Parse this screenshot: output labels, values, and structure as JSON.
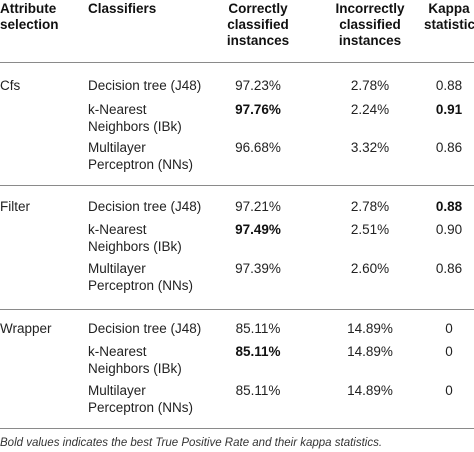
{
  "table": {
    "headers": {
      "attribute_selection": [
        "Attribute",
        "selection"
      ],
      "classifiers": [
        "Classifiers"
      ],
      "correct": [
        "Correctly",
        "classified",
        "instances"
      ],
      "incorrect": [
        "Incorrectly",
        "classified",
        "instances"
      ],
      "kappa": [
        "Kappa",
        "statistic"
      ]
    },
    "groups": [
      {
        "name": "Cfs",
        "rows": [
          {
            "classifier": [
              "Decision tree (J48)"
            ],
            "correct": "97.23%",
            "correct_bold": false,
            "incorrect": "2.78%",
            "kappa": "0.88",
            "kappa_bold": false
          },
          {
            "classifier": [
              "k-Nearest",
              "Neighbors (IBk)"
            ],
            "correct": "97.76%",
            "correct_bold": true,
            "incorrect": "2.24%",
            "kappa": "0.91",
            "kappa_bold": true
          },
          {
            "classifier": [
              "Multilayer",
              "Perceptron (NNs)"
            ],
            "correct": "96.68%",
            "correct_bold": false,
            "incorrect": "3.32%",
            "kappa": "0.86",
            "kappa_bold": false
          }
        ]
      },
      {
        "name": "Filter",
        "rows": [
          {
            "classifier": [
              "Decision tree (J48)"
            ],
            "correct": "97.21%",
            "correct_bold": false,
            "incorrect": "2.78%",
            "kappa": "0.88",
            "kappa_bold": true
          },
          {
            "classifier": [
              "k-Nearest",
              "Neighbors (IBk)"
            ],
            "correct": "97.49%",
            "correct_bold": true,
            "incorrect": "2.51%",
            "kappa": "0.90",
            "kappa_bold": false
          },
          {
            "classifier": [
              "Multilayer",
              "Perceptron (NNs)"
            ],
            "correct": "97.39%",
            "correct_bold": false,
            "incorrect": "2.60%",
            "kappa": "0.86",
            "kappa_bold": false
          }
        ]
      },
      {
        "name": "Wrapper",
        "rows": [
          {
            "classifier": [
              "Decision tree (J48)"
            ],
            "correct": "85.11%",
            "correct_bold": false,
            "incorrect": "14.89%",
            "kappa": "0",
            "kappa_bold": false
          },
          {
            "classifier": [
              "k-Nearest",
              "Neighbors (IBk)"
            ],
            "correct": "85.11%",
            "correct_bold": true,
            "incorrect": "14.89%",
            "kappa": "0",
            "kappa_bold": false
          },
          {
            "classifier": [
              "Multilayer",
              "Perceptron (NNs)"
            ],
            "correct": "85.11%",
            "correct_bold": false,
            "incorrect": "14.89%",
            "kappa": "0",
            "kappa_bold": false
          }
        ]
      }
    ]
  },
  "footnote": "Bold values indicates the best True Positive Rate and their kappa statistics."
}
